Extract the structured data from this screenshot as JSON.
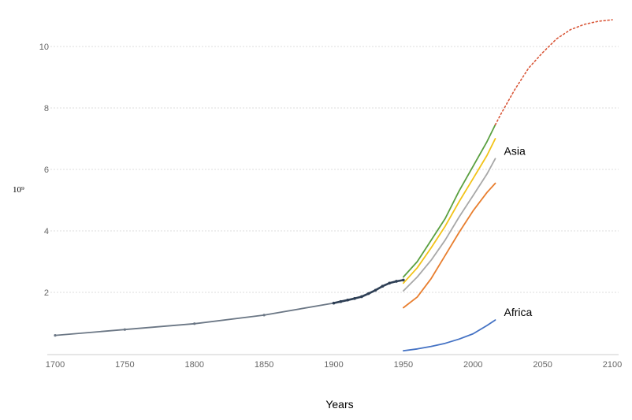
{
  "chart_data": {
    "type": "line",
    "title": "",
    "xlabel": "Years",
    "ylabel": "10⁹",
    "xlim": [
      1700,
      2100
    ],
    "ylim": [
      0,
      11
    ],
    "x_ticks": [
      1700,
      1750,
      1800,
      1850,
      1900,
      1950,
      2000,
      2050,
      2100
    ],
    "y_ticks": [
      2,
      4,
      6,
      8,
      10
    ],
    "grid": "horizontal dotted",
    "series": [
      {
        "color": "#6b7785",
        "style": "solid",
        "markers": true,
        "x": [
          1700,
          1750,
          1800,
          1850,
          1900
        ],
        "y": [
          0.6,
          0.79,
          0.98,
          1.26,
          1.65
        ]
      },
      {
        "color": "#2e3f55",
        "style": "solid-thick",
        "markers": true,
        "x": [
          1900,
          1905,
          1910,
          1915,
          1920,
          1925,
          1930,
          1935,
          1940,
          1945,
          1950
        ],
        "y": [
          1.65,
          1.7,
          1.75,
          1.8,
          1.86,
          1.96,
          2.07,
          2.2,
          2.3,
          2.36,
          2.4
        ]
      },
      {
        "color": "#5aa040",
        "style": "solid",
        "x": [
          1950,
          1960,
          1970,
          1980,
          1990,
          2000,
          2010,
          2016
        ],
        "y": [
          2.5,
          3.0,
          3.7,
          4.4,
          5.3,
          6.1,
          6.9,
          7.45
        ]
      },
      {
        "color": "#f2c318",
        "style": "solid",
        "x": [
          1950,
          1960,
          1970,
          1980,
          1990,
          2000,
          2010,
          2016
        ],
        "y": [
          2.3,
          2.8,
          3.45,
          4.15,
          4.95,
          5.7,
          6.45,
          7.0
        ]
      },
      {
        "name": "Asia",
        "color": "#a8a8a8",
        "style": "solid",
        "x": [
          1950,
          1960,
          1970,
          1980,
          1990,
          2000,
          2010,
          2016
        ],
        "y": [
          2.05,
          2.5,
          3.05,
          3.7,
          4.45,
          5.15,
          5.85,
          6.35
        ]
      },
      {
        "color": "#e87e2e",
        "style": "solid",
        "x": [
          1950,
          1960,
          1970,
          1980,
          1990,
          2000,
          2010,
          2016
        ],
        "y": [
          1.5,
          1.85,
          2.45,
          3.2,
          3.95,
          4.65,
          5.25,
          5.55
        ]
      },
      {
        "name": "Africa",
        "color": "#4472c4",
        "style": "solid",
        "x": [
          1950,
          1960,
          1970,
          1980,
          1990,
          2000,
          2010,
          2016
        ],
        "y": [
          0.1,
          0.16,
          0.24,
          0.34,
          0.48,
          0.65,
          0.92,
          1.1
        ]
      },
      {
        "color": "#d9583a",
        "style": "dotted",
        "x": [
          2016,
          2020,
          2030,
          2040,
          2050,
          2060,
          2070,
          2080,
          2090,
          2100
        ],
        "y": [
          7.45,
          7.8,
          8.6,
          9.3,
          9.8,
          10.25,
          10.55,
          10.72,
          10.82,
          10.87
        ]
      }
    ]
  }
}
